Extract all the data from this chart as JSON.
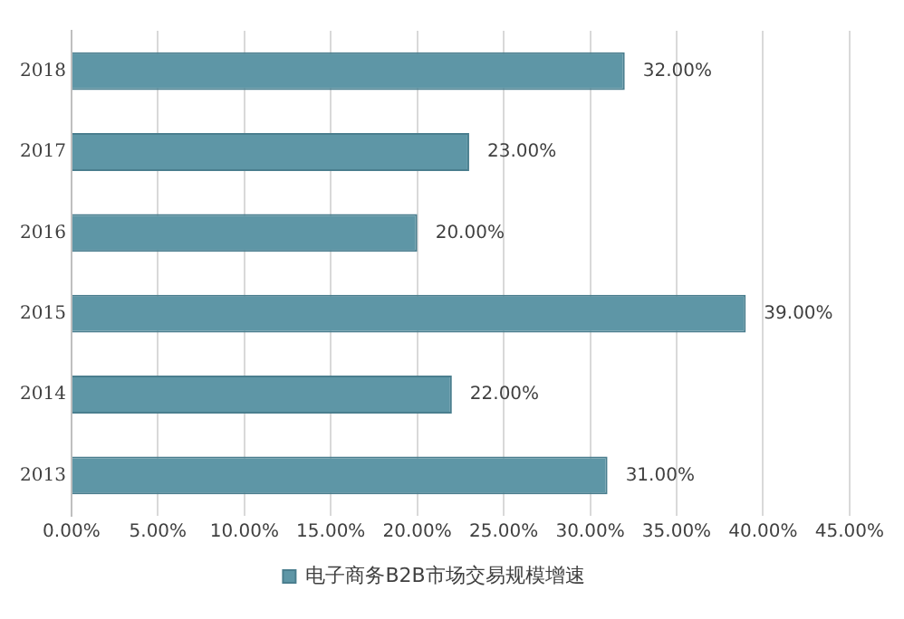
{
  "chart_data": {
    "type": "bar",
    "orientation": "horizontal",
    "categories": [
      "2018",
      "2017",
      "2016",
      "2015",
      "2014",
      "2013"
    ],
    "series": [
      {
        "name": "电子商务B2B市场交易规模增速",
        "color": "#5e96a6",
        "values": [
          32,
          23,
          20,
          39,
          22,
          31
        ],
        "value_labels": [
          "32.00%",
          "23.00%",
          "20.00%",
          "39.00%",
          "22.00%",
          "31.00%"
        ]
      }
    ],
    "xlim": [
      0,
      45
    ],
    "xticks": [
      {
        "value": 0,
        "label": "0.00%"
      },
      {
        "value": 5,
        "label": "5.00%"
      },
      {
        "value": 10,
        "label": "10.00%"
      },
      {
        "value": 15,
        "label": "15.00%"
      },
      {
        "value": 20,
        "label": "20.00%"
      },
      {
        "value": 25,
        "label": "25.00%"
      },
      {
        "value": 30,
        "label": "30.00%"
      },
      {
        "value": 35,
        "label": "35.00%"
      },
      {
        "value": 40,
        "label": "40.00%"
      },
      {
        "value": 45,
        "label": "45.00%"
      }
    ],
    "grid": "x",
    "legend": "bottom"
  }
}
